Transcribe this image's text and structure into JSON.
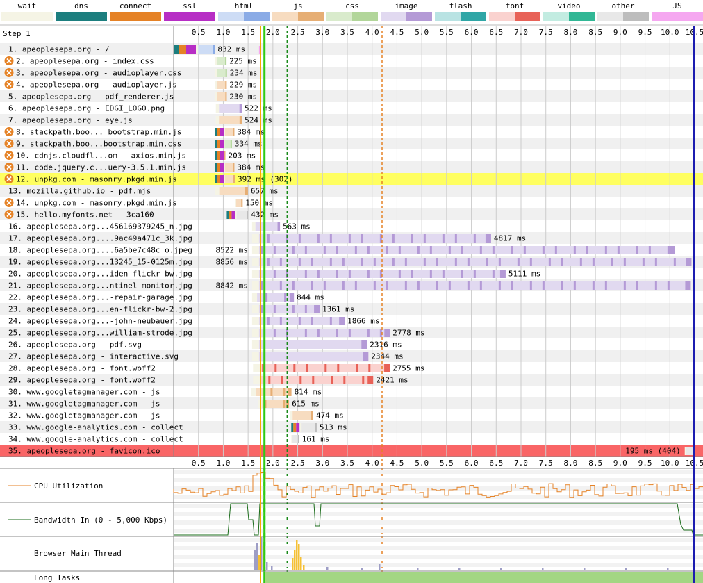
{
  "step_label": "Step_1",
  "legend": [
    {
      "label": "wait",
      "light": "#f5f4e5",
      "dark": "#f5f4e5"
    },
    {
      "label": "dns",
      "light": "#1c7e7e",
      "dark": "#1c7e7e"
    },
    {
      "label": "connect",
      "light": "#e58226",
      "dark": "#e58226"
    },
    {
      "label": "ssl",
      "light": "#b72ec5",
      "dark": "#b72ec5"
    },
    {
      "label": "html",
      "light": "#cddcf5",
      "dark": "#8aabe6"
    },
    {
      "label": "js",
      "light": "#f7dcc0",
      "dark": "#e6ae74"
    },
    {
      "label": "css",
      "light": "#d9ebcc",
      "dark": "#b2d69a"
    },
    {
      "label": "image",
      "light": "#e1d9f0",
      "dark": "#b49ad6"
    },
    {
      "label": "flash",
      "light": "#b9e3e3",
      "dark": "#2fa6a6"
    },
    {
      "label": "font",
      "light": "#fad2cf",
      "dark": "#e86258"
    },
    {
      "label": "video",
      "light": "#c2ece1",
      "dark": "#31b795"
    },
    {
      "label": "other",
      "light": "#e8e8e8",
      "dark": "#bdbdbd"
    },
    {
      "label": "JS Execution",
      "light": "#f5a7f0",
      "dark": "#f5a7f0"
    }
  ],
  "axis": {
    "min": 0,
    "max": 10.5,
    "ticks": [
      "0.5",
      "1.0",
      "1.5",
      "2.0",
      "2.5",
      "3.0",
      "3.5",
      "4.0",
      "4.5",
      "5.0",
      "5.5",
      "6.0",
      "6.5",
      "7.0",
      "7.5",
      "8.0",
      "8.5",
      "9.0",
      "9.5",
      "10.0",
      "10.5"
    ]
  },
  "markers": {
    "start_render": 1.75,
    "first_contentful": 1.83,
    "dom_content_loaded": 2.29,
    "document_complete": 4.2,
    "onload_end": 10.48
  },
  "requests": [
    {
      "label": "1. apeoplesepa.org - /",
      "type": "html",
      "start": 0.0,
      "end": 0.832,
      "time": "832 ms",
      "warn": false
    },
    {
      "label": "2. apeoplesepa.org - index.css",
      "type": "css",
      "start": 0.84,
      "end": 1.065,
      "time": "225 ms",
      "warn": true
    },
    {
      "label": "3. apeoplesepa.org - audioplayer.css",
      "type": "css",
      "start": 0.84,
      "end": 1.074,
      "time": "234 ms",
      "warn": true
    },
    {
      "label": "4. apeoplesepa.org - audioplayer.js",
      "type": "js",
      "start": 0.84,
      "end": 1.069,
      "time": "229 ms",
      "warn": true
    },
    {
      "label": "5. apeoplesepa.org - pdf_renderer.js",
      "type": "js",
      "start": 0.84,
      "end": 1.07,
      "time": "230 ms",
      "warn": false
    },
    {
      "label": "6. apeoplesepa.org - EDGI_LOGO.png",
      "type": "image",
      "start": 0.85,
      "end": 1.372,
      "time": "522 ms",
      "warn": false
    },
    {
      "label": "7. apeoplesepa.org - eye.js",
      "type": "js",
      "start": 0.85,
      "end": 1.374,
      "time": "524 ms",
      "warn": false
    },
    {
      "label": "8. stackpath.boo... bootstrap.min.js",
      "type": "js",
      "start": 0.84,
      "end": 1.224,
      "time": "384 ms",
      "warn": true
    },
    {
      "label": "9. stackpath.boo...bootstrap.min.css",
      "type": "css",
      "start": 0.84,
      "end": 1.174,
      "time": "334 ms",
      "warn": true
    },
    {
      "label": "10. cdnjs.cloudfl...om - axios.min.js",
      "type": "js",
      "start": 0.84,
      "end": 1.043,
      "time": "203 ms",
      "warn": true
    },
    {
      "label": "11. code.jquery.c...uery-3.5.1.min.js",
      "type": "js",
      "start": 0.84,
      "end": 1.224,
      "time": "384 ms",
      "warn": true
    },
    {
      "label": "12. unpkg.com - masonry.pkgd.min.js",
      "type": "js",
      "start": 0.84,
      "end": 1.232,
      "time": "392 ms (302)",
      "warn": true,
      "highlight": "#ffff60"
    },
    {
      "label": "13. mozilla.github.io - pdf.mjs",
      "type": "js",
      "start": 0.84,
      "end": 1.497,
      "time": "657 ms",
      "warn": false
    },
    {
      "label": "14. unpkg.com - masonry.pkgd.min.js",
      "type": "js",
      "start": 1.24,
      "end": 1.39,
      "time": "150 ms",
      "warn": true
    },
    {
      "label": "15. hello.myfonts.net - 3ca160",
      "type": "other",
      "start": 1.07,
      "end": 1.502,
      "time": "432 ms",
      "warn": true
    },
    {
      "label": "16. apeoplesepa.org...456169379245_n.jpg",
      "type": "image",
      "start": 1.58,
      "end": 2.143,
      "time": "563 ms",
      "warn": false
    },
    {
      "label": "17. apeoplesepa.org....9ac49a471c_3k.jpg",
      "type": "image",
      "start": 1.58,
      "end": 6.397,
      "time": "4817 ms",
      "warn": false,
      "stripes": true
    },
    {
      "label": "18. apeoplesepa.org....6a5be7c48c_o.jpeg",
      "type": "image",
      "start": 1.58,
      "end": 10.1,
      "time": "8522 ms",
      "warn": false,
      "stripes": true,
      "time_left": true
    },
    {
      "label": "19. apeoplesepa.org...13245_15-0125m.jpg",
      "type": "image",
      "start": 1.58,
      "end": 10.436,
      "time": "8856 ms",
      "warn": false,
      "stripes": true,
      "time_left": true
    },
    {
      "label": "20. apeoplesepa.org...iden-flickr-bw.jpg",
      "type": "image",
      "start": 1.58,
      "end": 6.691,
      "time": "5111 ms",
      "warn": false,
      "stripes": true
    },
    {
      "label": "21. apeoplesepa.org...ntinel-monitor.jpg",
      "type": "image",
      "start": 1.58,
      "end": 10.422,
      "time": "8842 ms",
      "warn": false,
      "stripes": true,
      "time_left": true
    },
    {
      "label": "22. apeoplesepa.org...-repair-garage.jpg",
      "type": "image",
      "start": 1.58,
      "end": 2.424,
      "time": "844 ms",
      "warn": false,
      "stripes": true
    },
    {
      "label": "23. apeoplesepa.org...en-flickr-bw-2.jpg",
      "type": "image",
      "start": 1.58,
      "end": 2.941,
      "time": "1361 ms",
      "warn": false,
      "stripes": true
    },
    {
      "label": "24. apeoplesepa.org...-john-neubauer.jpg",
      "type": "image",
      "start": 1.58,
      "end": 3.446,
      "time": "1866 ms",
      "warn": false,
      "stripes": true
    },
    {
      "label": "25. apeoplesepa.org...william-strode.jpg",
      "type": "image",
      "start": 1.58,
      "end": 4.358,
      "time": "2778 ms",
      "warn": false,
      "stripes": true
    },
    {
      "label": "26. apeoplesepa.org - pdf.svg",
      "type": "image",
      "start": 1.58,
      "end": 3.896,
      "time": "2316 ms",
      "warn": false
    },
    {
      "label": "27. apeoplesepa.org - interactive.svg",
      "type": "image",
      "start": 1.58,
      "end": 3.924,
      "time": "2344 ms",
      "warn": false
    },
    {
      "label": "28. apeoplesepa.org - font.woff2",
      "type": "font",
      "start": 1.6,
      "end": 4.355,
      "time": "2755 ms",
      "warn": false,
      "stripes": true
    },
    {
      "label": "29. apeoplesepa.org - font.woff2",
      "type": "font",
      "start": 1.6,
      "end": 4.021,
      "time": "2421 ms",
      "warn": false,
      "stripes": true
    },
    {
      "label": "30. www.googletagmanager.com - js",
      "type": "js",
      "start": 1.56,
      "end": 2.374,
      "time": "814 ms",
      "warn": false,
      "stripes": true
    },
    {
      "label": "31. www.googletagmanager.com - js",
      "type": "js",
      "start": 1.71,
      "end": 2.325,
      "time": "615 ms",
      "warn": false,
      "stripes": true
    },
    {
      "label": "32. www.googletagmanager.com - js",
      "type": "js",
      "start": 2.34,
      "end": 2.814,
      "time": "474 ms",
      "warn": false
    },
    {
      "label": "33. www.google-analytics.com - collect",
      "type": "other",
      "start": 2.37,
      "end": 2.883,
      "time": "513 ms",
      "warn": false
    },
    {
      "label": "34. www.google-analytics.com - collect",
      "type": "other",
      "start": 2.37,
      "end": 2.531,
      "time": "161 ms",
      "warn": false
    },
    {
      "label": "35. apeoplesepa.org - favicon.ico",
      "type": "other",
      "start": 10.3,
      "end": 10.495,
      "time": "195 ms (404)",
      "warn": false,
      "highlight": "#f96566",
      "time_left": true
    }
  ],
  "panels": {
    "cpu": "CPU Utilization",
    "bandwidth": "Bandwidth In (0 - 5,000 Kbps)",
    "main_thread": "Browser Main Thread",
    "long_tasks": "Long Tasks"
  },
  "colors": {
    "cpu_line": "#e58226",
    "bw_line": "#1a6b1a",
    "long_task": "#a3d683",
    "start_render": "#f8a800",
    "fcp": "#2ecc15",
    "dcl": "#1a8a1a",
    "doc_complete": "#e58226",
    "onload": "#1c1cb0",
    "thread_js": "#f5c035",
    "thread_other": "#9e9ec6"
  }
}
